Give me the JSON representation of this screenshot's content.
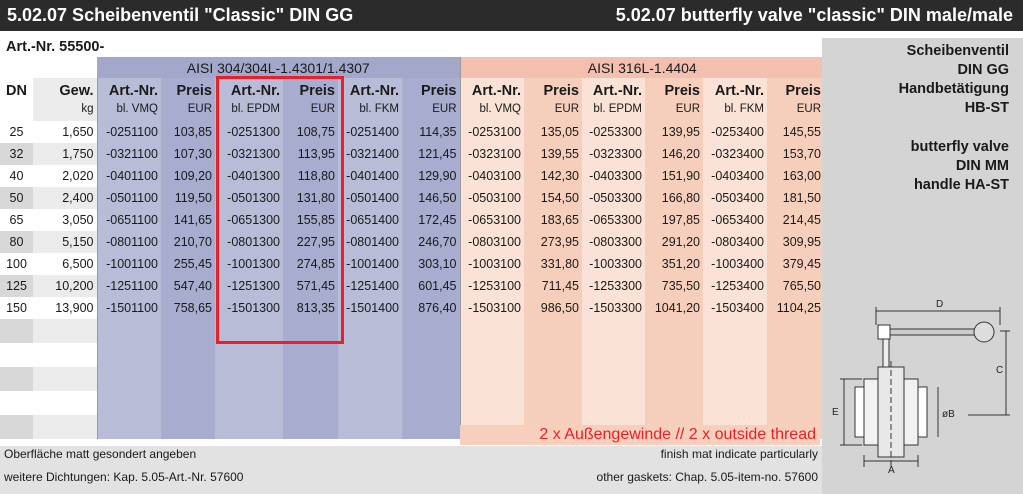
{
  "header": {
    "title_de": "5.02.07 Scheibenventil \"Classic\" DIN GG",
    "title_en": "5.02.07 butterfly valve \"classic\" DIN male/male"
  },
  "article_prefix": "Art.-Nr. 55500-",
  "material_groups": {
    "group1": "AISI 304/304L-1.4301/1.4307",
    "group2": "AISI 316L-1.4404"
  },
  "columns": {
    "dn": "DN",
    "weight": {
      "line1": "Gew.",
      "line2": "kg"
    },
    "art_vmq": {
      "line1": "Art.-Nr.",
      "line2": "bl. VMQ"
    },
    "price": {
      "line1": "Preis",
      "line2": "EUR"
    },
    "art_epdm": {
      "line1": "Art.-Nr.",
      "line2": "bl. EPDM"
    },
    "art_fkm": {
      "line1": "Art.-Nr.",
      "line2": "bl. FKM"
    }
  },
  "rows": [
    {
      "dn": "25",
      "kg": "1,650",
      "a1": "-0251100",
      "p1": "103,85",
      "a2": "-0251300",
      "p2": "108,75",
      "a3": "-0251400",
      "p3": "114,35",
      "b1": "-0253100",
      "q1": "135,05",
      "b2": "-0253300",
      "q2": "139,95",
      "b3": "-0253400",
      "q3": "145,55"
    },
    {
      "dn": "32",
      "kg": "1,750",
      "a1": "-0321100",
      "p1": "107,30",
      "a2": "-0321300",
      "p2": "113,95",
      "a3": "-0321400",
      "p3": "121,45",
      "b1": "-0323100",
      "q1": "139,55",
      "b2": "-0323300",
      "q2": "146,20",
      "b3": "-0323400",
      "q3": "153,70"
    },
    {
      "dn": "40",
      "kg": "2,020",
      "a1": "-0401100",
      "p1": "109,20",
      "a2": "-0401300",
      "p2": "118,80",
      "a3": "-0401400",
      "p3": "129,90",
      "b1": "-0403100",
      "q1": "142,30",
      "b2": "-0403300",
      "q2": "151,90",
      "b3": "-0403400",
      "q3": "163,00"
    },
    {
      "dn": "50",
      "kg": "2,400",
      "a1": "-0501100",
      "p1": "119,50",
      "a2": "-0501300",
      "p2": "131,80",
      "a3": "-0501400",
      "p3": "146,50",
      "b1": "-0503100",
      "q1": "154,50",
      "b2": "-0503300",
      "q2": "166,80",
      "b3": "-0503400",
      "q3": "181,50"
    },
    {
      "dn": "65",
      "kg": "3,050",
      "a1": "-0651100",
      "p1": "141,65",
      "a2": "-0651300",
      "p2": "155,85",
      "a3": "-0651400",
      "p3": "172,45",
      "b1": "-0653100",
      "q1": "183,65",
      "b2": "-0653300",
      "q2": "197,85",
      "b3": "-0653400",
      "q3": "214,45"
    },
    {
      "dn": "80",
      "kg": "5,150",
      "a1": "-0801100",
      "p1": "210,70",
      "a2": "-0801300",
      "p2": "227,95",
      "a3": "-0801400",
      "p3": "246,70",
      "b1": "-0803100",
      "q1": "273,95",
      "b2": "-0803300",
      "q2": "291,20",
      "b3": "-0803400",
      "q3": "309,95"
    },
    {
      "dn": "100",
      "kg": "6,500",
      "a1": "-1001100",
      "p1": "255,45",
      "a2": "-1001300",
      "p2": "274,85",
      "a3": "-1001400",
      "p3": "303,10",
      "b1": "-1003100",
      "q1": "331,80",
      "b2": "-1003300",
      "q2": "351,20",
      "b3": "-1003400",
      "q3": "379,45"
    },
    {
      "dn": "125",
      "kg": "10,200",
      "a1": "-1251100",
      "p1": "547,40",
      "a2": "-1251300",
      "p2": "571,45",
      "a3": "-1251400",
      "p3": "601,45",
      "b1": "-1253100",
      "q1": "711,45",
      "b2": "-1253300",
      "q2": "735,50",
      "b3": "-1253400",
      "q3": "765,50"
    },
    {
      "dn": "150",
      "kg": "13,900",
      "a1": "-1501100",
      "p1": "758,65",
      "a2": "-1501300",
      "p2": "813,35",
      "a3": "-1501400",
      "p3": "876,40",
      "b1": "-1503100",
      "q1": "986,50",
      "b2": "-1503300",
      "q2": "1041,20",
      "b3": "-1503400",
      "q3": "1104,25"
    }
  ],
  "thread_note": "2 x Außengewinde // 2 x outside thread",
  "footnotes": {
    "de1": "Oberfläche matt gesondert angeben",
    "de2": "weitere Dichtungen: Kap. 5.05-Art.-Nr. 57600",
    "en1": "finish mat indicate particularly",
    "en2": "other gaskets: Chap. 5.05-item-no. 57600"
  },
  "sidebar": {
    "de": [
      "Scheibenventil",
      "DIN GG",
      "Handbetätigung",
      "HB-ST"
    ],
    "en": [
      "butterfly valve",
      "DIN MM",
      "handle HA-ST"
    ]
  },
  "drawing_labels": {
    "d": "D",
    "c": "C",
    "e": "E",
    "a": "A",
    "b": "øB"
  },
  "colors": {
    "header_bg": "#2b2b2b",
    "blue_band": "#a3a8ca",
    "salmon_band": "#f3bfae",
    "highlight": "#e8202a"
  }
}
